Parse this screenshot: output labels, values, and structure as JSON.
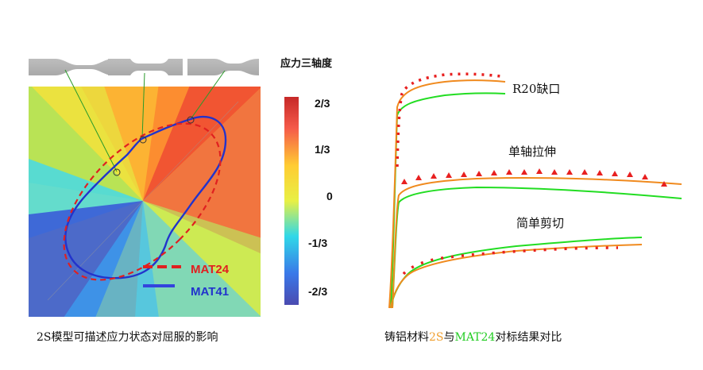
{
  "left_panel": {
    "colorbar_title": "应力三轴度",
    "colorbar_ticks": [
      "2/3",
      "1/3",
      "0",
      "-1/3",
      "-2/3"
    ],
    "legend": [
      {
        "label": "MAT24",
        "color": "#e02020",
        "style": "dashed"
      },
      {
        "label": "MAT41",
        "color": "#2233cc",
        "style": "solid"
      }
    ],
    "caption": "2S模型可描述应力状态对屈服的影响"
  },
  "right_panel": {
    "curve_labels": [
      "R20缺口",
      "单轴拉伸",
      "简单剪切"
    ],
    "caption": {
      "prefix": "铸铝材料",
      "mat_a": "2S",
      "middle": "与",
      "mat_b": "MAT24",
      "suffix": "对标结果对比"
    },
    "colors": {
      "orange": "#f08a1e",
      "green": "#22dd22",
      "red": "#e82020"
    }
  }
}
